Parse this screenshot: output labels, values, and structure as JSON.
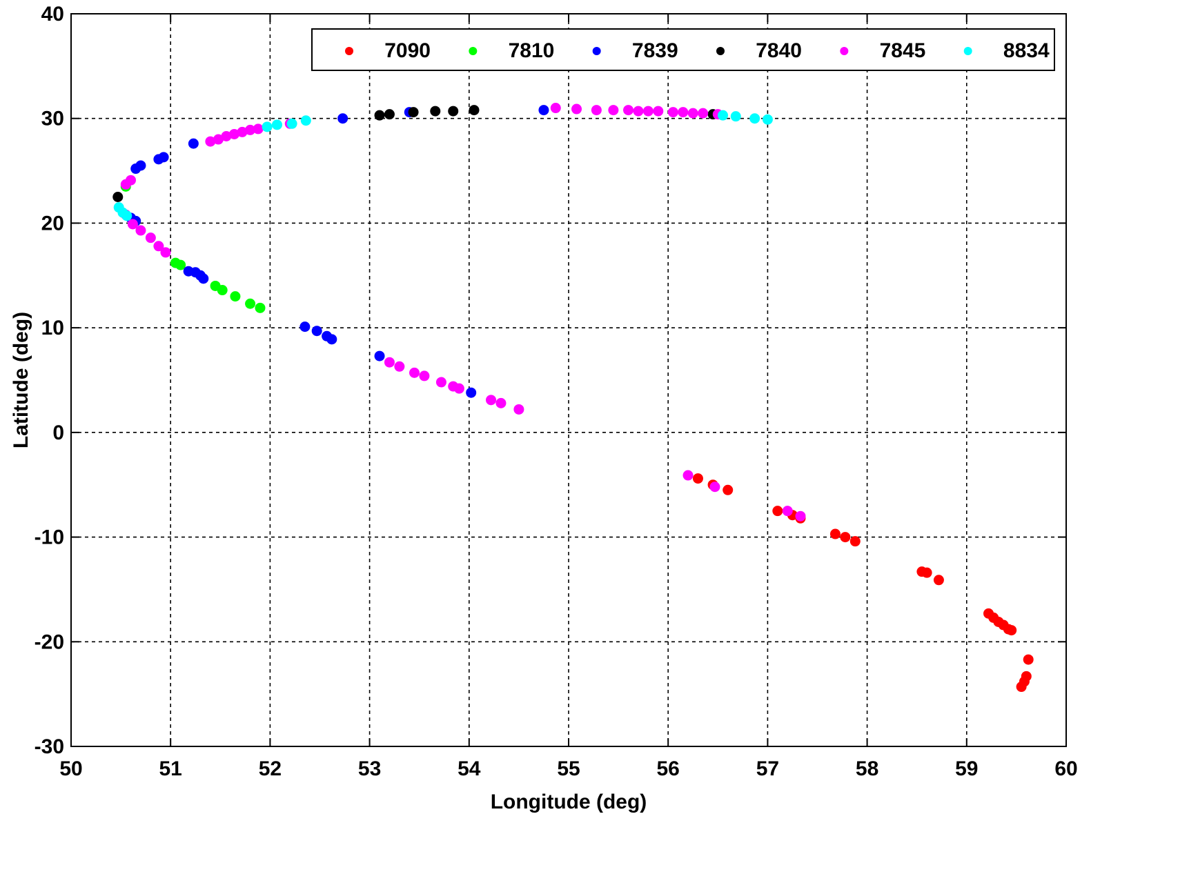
{
  "chart_data": {
    "type": "scatter",
    "title": "",
    "xlabel": "Longitude (deg)",
    "ylabel": "Latitude (deg)",
    "xlim": [
      50,
      60
    ],
    "ylim": [
      -30,
      40
    ],
    "xticks": [
      "50",
      "51",
      "52",
      "53",
      "54",
      "55",
      "56",
      "57",
      "58",
      "59",
      "60"
    ],
    "yticks": [
      "-30",
      "-20",
      "-10",
      "0",
      "10",
      "20",
      "30",
      "40"
    ],
    "grid": true,
    "legend_position": "top",
    "series": [
      {
        "name": "7090",
        "color": "#ff0000",
        "points": [
          [
            56.3,
            -4.4
          ],
          [
            56.45,
            -5.0
          ],
          [
            56.6,
            -5.5
          ],
          [
            57.1,
            -7.5
          ],
          [
            57.25,
            -7.9
          ],
          [
            57.33,
            -8.2
          ],
          [
            57.68,
            -9.7
          ],
          [
            57.78,
            -10.0
          ],
          [
            57.88,
            -10.4
          ],
          [
            58.55,
            -13.3
          ],
          [
            58.6,
            -13.4
          ],
          [
            58.72,
            -14.1
          ],
          [
            59.22,
            -17.3
          ],
          [
            59.27,
            -17.7
          ],
          [
            59.32,
            -18.1
          ],
          [
            59.37,
            -18.4
          ],
          [
            59.42,
            -18.8
          ],
          [
            59.45,
            -18.9
          ],
          [
            59.62,
            -21.7
          ],
          [
            59.6,
            -23.3
          ],
          [
            59.58,
            -23.8
          ],
          [
            59.55,
            -24.3
          ]
        ]
      },
      {
        "name": "7810",
        "color": "#00ff00",
        "points": [
          [
            50.55,
            23.5
          ],
          [
            51.05,
            16.2
          ],
          [
            51.1,
            16.0
          ],
          [
            51.45,
            14.0
          ],
          [
            51.52,
            13.6
          ],
          [
            51.65,
            13.0
          ],
          [
            51.8,
            12.3
          ],
          [
            51.9,
            11.9
          ]
        ]
      },
      {
        "name": "7839",
        "color": "#0000ff",
        "points": [
          [
            50.65,
            25.2
          ],
          [
            50.7,
            25.5
          ],
          [
            50.88,
            26.1
          ],
          [
            50.93,
            26.3
          ],
          [
            51.23,
            27.6
          ],
          [
            52.73,
            30.0
          ],
          [
            53.4,
            30.6
          ],
          [
            54.75,
            30.8
          ],
          [
            50.6,
            20.5
          ],
          [
            50.65,
            20.2
          ],
          [
            51.18,
            15.4
          ],
          [
            51.25,
            15.3
          ],
          [
            51.3,
            15.0
          ],
          [
            51.33,
            14.7
          ],
          [
            52.35,
            10.1
          ],
          [
            52.47,
            9.7
          ],
          [
            52.57,
            9.2
          ],
          [
            52.62,
            8.9
          ],
          [
            53.1,
            7.3
          ],
          [
            54.02,
            3.8
          ]
        ]
      },
      {
        "name": "7840",
        "color": "#000000",
        "points": [
          [
            50.47,
            22.5
          ],
          [
            53.1,
            30.3
          ],
          [
            53.2,
            30.4
          ],
          [
            53.44,
            30.6
          ],
          [
            53.66,
            30.7
          ],
          [
            53.84,
            30.7
          ],
          [
            54.05,
            30.8
          ],
          [
            56.45,
            30.4
          ]
        ]
      },
      {
        "name": "7845",
        "color": "#ff00ff",
        "points": [
          [
            50.55,
            23.7
          ],
          [
            50.6,
            24.1
          ],
          [
            51.4,
            27.8
          ],
          [
            51.48,
            28.0
          ],
          [
            51.56,
            28.3
          ],
          [
            51.64,
            28.5
          ],
          [
            51.72,
            28.7
          ],
          [
            51.8,
            28.9
          ],
          [
            51.88,
            29.0
          ],
          [
            52.2,
            29.5
          ],
          [
            54.87,
            31.0
          ],
          [
            55.08,
            30.9
          ],
          [
            55.28,
            30.8
          ],
          [
            55.45,
            30.8
          ],
          [
            55.6,
            30.8
          ],
          [
            55.7,
            30.7
          ],
          [
            55.8,
            30.7
          ],
          [
            55.9,
            30.7
          ],
          [
            56.05,
            30.6
          ],
          [
            56.15,
            30.6
          ],
          [
            56.25,
            30.5
          ],
          [
            56.35,
            30.5
          ],
          [
            56.5,
            30.4
          ],
          [
            50.55,
            20.8
          ],
          [
            50.62,
            19.9
          ],
          [
            50.7,
            19.3
          ],
          [
            50.8,
            18.6
          ],
          [
            50.88,
            17.8
          ],
          [
            50.95,
            17.2
          ],
          [
            53.2,
            6.7
          ],
          [
            53.3,
            6.3
          ],
          [
            53.45,
            5.7
          ],
          [
            53.55,
            5.4
          ],
          [
            53.72,
            4.8
          ],
          [
            53.84,
            4.4
          ],
          [
            53.9,
            4.2
          ],
          [
            54.22,
            3.1
          ],
          [
            54.32,
            2.8
          ],
          [
            54.5,
            2.2
          ],
          [
            56.2,
            -4.1
          ],
          [
            56.47,
            -5.2
          ],
          [
            57.2,
            -7.5
          ],
          [
            57.33,
            -8.0
          ]
        ]
      },
      {
        "name": "8834",
        "color": "#00ffff",
        "points": [
          [
            50.48,
            21.5
          ],
          [
            50.52,
            21.0
          ],
          [
            50.56,
            20.7
          ],
          [
            51.97,
            29.2
          ],
          [
            52.07,
            29.4
          ],
          [
            52.22,
            29.5
          ],
          [
            52.36,
            29.8
          ],
          [
            56.55,
            30.3
          ],
          [
            56.68,
            30.2
          ],
          [
            56.87,
            30.0
          ],
          [
            57.0,
            29.9
          ]
        ]
      }
    ]
  }
}
